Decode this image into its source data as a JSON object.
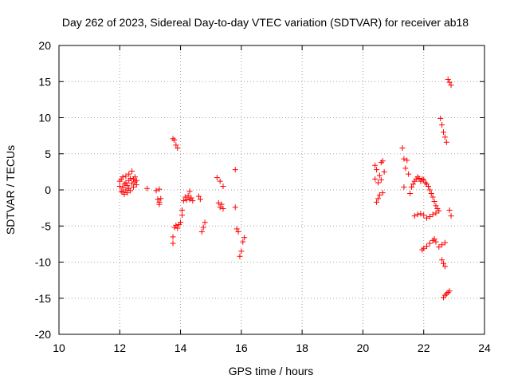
{
  "chart_data": {
    "type": "scatter",
    "title": "Day 262 of 2023, Sidereal Day-to-day VTEC variation (SDTVAR) for receiver ab18",
    "xlabel": "GPS time / hours",
    "ylabel": "SDTVAR / TECUs",
    "xlim": [
      10,
      24
    ],
    "ylim": [
      -20,
      20
    ],
    "xticks": [
      "10",
      "12",
      "14",
      "16",
      "18",
      "20",
      "22",
      "24"
    ],
    "yticks": [
      "20",
      "15",
      "10",
      "5",
      "0",
      "-5",
      "-10",
      "-15",
      "-20"
    ],
    "grid": true,
    "marker": "plus",
    "color": "#ff0000",
    "points": [
      [
        12.0,
        0.5
      ],
      [
        12.0,
        1.2
      ],
      [
        12.05,
        -0.2
      ],
      [
        12.05,
        1.5
      ],
      [
        12.1,
        0.3
      ],
      [
        12.1,
        -0.3
      ],
      [
        12.1,
        1.8
      ],
      [
        12.15,
        0.8
      ],
      [
        12.15,
        -0.6
      ],
      [
        12.2,
        1.0
      ],
      [
        12.2,
        0.0
      ],
      [
        12.2,
        1.9
      ],
      [
        12.25,
        0.6
      ],
      [
        12.25,
        -0.4
      ],
      [
        12.3,
        1.3
      ],
      [
        12.3,
        2.2
      ],
      [
        12.3,
        0.2
      ],
      [
        12.35,
        1.6
      ],
      [
        12.35,
        -0.1
      ],
      [
        12.4,
        0.9
      ],
      [
        12.4,
        2.6
      ],
      [
        12.45,
        1.5
      ],
      [
        12.45,
        0.4
      ],
      [
        12.5,
        1.1
      ],
      [
        12.5,
        1.8
      ],
      [
        12.55,
        1.3
      ],
      [
        12.55,
        0.7
      ],
      [
        12.9,
        0.2
      ],
      [
        13.2,
        -0.1
      ],
      [
        13.25,
        -1.3
      ],
      [
        13.3,
        0.1
      ],
      [
        13.3,
        -1.7
      ],
      [
        13.3,
        -2.0
      ],
      [
        13.35,
        -1.2
      ],
      [
        13.75,
        7.1
      ],
      [
        13.8,
        6.9
      ],
      [
        13.85,
        6.2
      ],
      [
        13.9,
        5.8
      ],
      [
        13.75,
        -7.4
      ],
      [
        13.75,
        -6.5
      ],
      [
        13.8,
        -5.2
      ],
      [
        13.85,
        -4.9
      ],
      [
        13.9,
        -5.3
      ],
      [
        13.95,
        -4.8
      ],
      [
        14.0,
        -4.5
      ],
      [
        14.05,
        -3.5
      ],
      [
        14.05,
        -2.8
      ],
      [
        14.1,
        -1.5
      ],
      [
        14.15,
        -1.0
      ],
      [
        14.2,
        -1.4
      ],
      [
        14.25,
        -0.8
      ],
      [
        14.3,
        -1.3
      ],
      [
        14.3,
        -0.2
      ],
      [
        14.35,
        -1.1
      ],
      [
        14.4,
        -1.5
      ],
      [
        14.6,
        -0.9
      ],
      [
        14.65,
        -1.3
      ],
      [
        14.7,
        -5.8
      ],
      [
        14.75,
        -5.2
      ],
      [
        14.8,
        -4.5
      ],
      [
        15.2,
        1.7
      ],
      [
        15.25,
        -1.8
      ],
      [
        15.3,
        -2.4
      ],
      [
        15.3,
        1.2
      ],
      [
        15.35,
        -2.0
      ],
      [
        15.4,
        -2.6
      ],
      [
        15.4,
        0.5
      ],
      [
        15.8,
        2.8
      ],
      [
        15.8,
        -2.4
      ],
      [
        15.85,
        -5.4
      ],
      [
        15.9,
        -5.8
      ],
      [
        15.95,
        -9.2
      ],
      [
        16.0,
        -8.5
      ],
      [
        16.05,
        -7.2
      ],
      [
        16.1,
        -6.6
      ],
      [
        20.4,
        3.4
      ],
      [
        20.4,
        1.5
      ],
      [
        20.45,
        2.8
      ],
      [
        20.45,
        -1.7
      ],
      [
        20.5,
        1.0
      ],
      [
        20.5,
        -1.2
      ],
      [
        20.55,
        2.0
      ],
      [
        20.55,
        -0.7
      ],
      [
        20.6,
        3.8
      ],
      [
        20.6,
        1.4
      ],
      [
        20.65,
        4.0
      ],
      [
        20.65,
        -0.4
      ],
      [
        20.7,
        2.5
      ],
      [
        21.3,
        5.8
      ],
      [
        21.35,
        4.3
      ],
      [
        21.35,
        0.4
      ],
      [
        21.4,
        3.0
      ],
      [
        21.45,
        4.1
      ],
      [
        21.5,
        2.2
      ],
      [
        21.55,
        -0.5
      ],
      [
        21.6,
        0.4
      ],
      [
        21.65,
        0.8
      ],
      [
        21.7,
        1.2
      ],
      [
        21.75,
        1.5
      ],
      [
        21.8,
        1.8
      ],
      [
        21.85,
        1.6
      ],
      [
        21.9,
        1.2
      ],
      [
        21.95,
        1.5
      ],
      [
        22.0,
        1.4
      ],
      [
        22.05,
        1.0
      ],
      [
        22.1,
        0.8
      ],
      [
        22.15,
        0.5
      ],
      [
        22.2,
        0.0
      ],
      [
        22.25,
        -0.5
      ],
      [
        22.3,
        -1.0
      ],
      [
        22.35,
        -1.6
      ],
      [
        22.4,
        -2.2
      ],
      [
        22.45,
        -2.6
      ],
      [
        22.5,
        -2.9
      ],
      [
        21.7,
        -3.6
      ],
      [
        21.8,
        -3.4
      ],
      [
        21.9,
        -3.3
      ],
      [
        22.0,
        -3.5
      ],
      [
        22.1,
        -3.9
      ],
      [
        22.2,
        -3.7
      ],
      [
        22.3,
        -3.4
      ],
      [
        22.4,
        -3.2
      ],
      [
        21.95,
        -8.3
      ],
      [
        22.0,
        -8.1
      ],
      [
        22.1,
        -7.8
      ],
      [
        22.2,
        -7.4
      ],
      [
        22.3,
        -7.0
      ],
      [
        22.35,
        -6.8
      ],
      [
        22.4,
        -7.2
      ],
      [
        22.5,
        -7.9
      ],
      [
        22.6,
        -7.6
      ],
      [
        22.7,
        -7.3
      ],
      [
        22.6,
        -9.7
      ],
      [
        22.65,
        -10.2
      ],
      [
        22.7,
        -10.6
      ],
      [
        22.55,
        9.9
      ],
      [
        22.6,
        9.0
      ],
      [
        22.65,
        8.0
      ],
      [
        22.7,
        7.3
      ],
      [
        22.75,
        6.6
      ],
      [
        22.65,
        -14.9
      ],
      [
        22.7,
        -14.6
      ],
      [
        22.75,
        -14.4
      ],
      [
        22.8,
        -14.2
      ],
      [
        22.85,
        -14.0
      ],
      [
        22.85,
        -2.8
      ],
      [
        22.9,
        -3.6
      ],
      [
        22.8,
        15.3
      ],
      [
        22.85,
        14.9
      ],
      [
        22.9,
        14.5
      ]
    ]
  }
}
